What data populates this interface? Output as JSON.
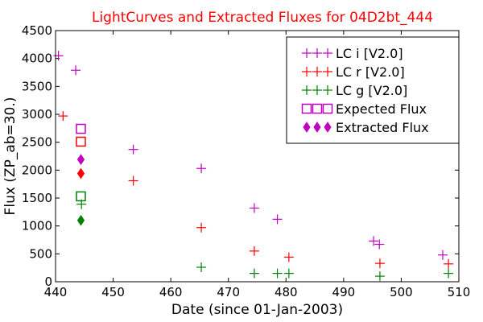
{
  "chart_data": {
    "type": "scatter",
    "title": "LightCurves and Extracted Fluxes for 04D2bt_444",
    "xlabel": "Date (since 01-Jan-2003)",
    "ylabel": "Flux (ZP_ab=30.)",
    "xlim": [
      440,
      510
    ],
    "ylim": [
      0,
      4500
    ],
    "xticks": [
      440,
      450,
      460,
      470,
      480,
      490,
      500,
      510
    ],
    "yticks": [
      0,
      500,
      1000,
      1500,
      2000,
      2500,
      3000,
      3500,
      4000,
      4500
    ],
    "legend_position": "top-right",
    "series": [
      {
        "name": "LC i [V2.0]",
        "marker": "plus",
        "color": "#bf00bf",
        "points": [
          [
            440.5,
            4050
          ],
          [
            443.5,
            3790
          ],
          [
            453.5,
            2370
          ],
          [
            465.3,
            2030
          ],
          [
            474.5,
            1320
          ],
          [
            478.5,
            1120
          ],
          [
            495.2,
            730
          ],
          [
            496.2,
            670
          ],
          [
            507.2,
            480
          ]
        ]
      },
      {
        "name": "LC r [V2.0]",
        "marker": "plus",
        "color": "#ff0000",
        "points": [
          [
            441.3,
            2970
          ],
          [
            453.5,
            1810
          ],
          [
            465.3,
            970
          ],
          [
            474.5,
            550
          ],
          [
            480.5,
            440
          ],
          [
            496.3,
            330
          ],
          [
            508.2,
            320
          ]
        ]
      },
      {
        "name": "LC g [V2.0]",
        "marker": "plus",
        "color": "#008000",
        "points": [
          [
            444.5,
            1390
          ],
          [
            465.3,
            260
          ],
          [
            474.5,
            150
          ],
          [
            478.5,
            150
          ],
          [
            480.5,
            150
          ],
          [
            496.3,
            100
          ],
          [
            508.2,
            150
          ]
        ]
      },
      {
        "name": "Expected Flux",
        "marker": "square",
        "points": [
          [
            444.4,
            2740,
            "#bf00bf"
          ],
          [
            444.4,
            2510,
            "#ff0000"
          ],
          [
            444.4,
            1530,
            "#008000"
          ]
        ]
      },
      {
        "name": "Extracted Flux",
        "marker": "diamond",
        "points": [
          [
            444.4,
            2190,
            "#bf00bf"
          ],
          [
            444.4,
            1940,
            "#ff0000"
          ],
          [
            444.4,
            1100,
            "#008000"
          ]
        ]
      }
    ]
  }
}
